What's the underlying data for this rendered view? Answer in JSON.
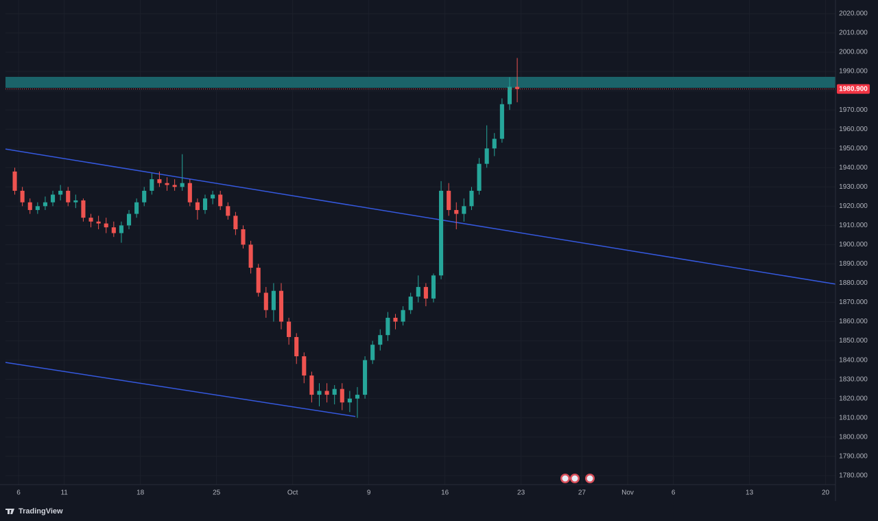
{
  "chart_data": {
    "type": "candlestick",
    "brand": "TradingView",
    "x": [
      -0.25,
      0.25,
      0.75,
      1.25,
      1.75,
      2.25,
      2.75,
      3.25,
      3.75,
      4.25,
      4.75,
      5.25,
      5.75,
      6.25,
      6.75,
      7.25,
      7.75,
      8.25,
      8.75,
      9.25,
      9.75,
      10.25,
      10.75,
      11.25,
      11.75,
      12.25,
      12.75,
      13.25,
      13.75,
      14.25,
      14.75,
      15.25,
      15.75,
      16.25,
      16.75,
      17.25,
      17.75,
      18.25,
      18.75,
      19.25,
      19.75,
      20.25,
      20.75,
      21.25,
      21.75,
      22.25,
      22.75,
      23.25,
      23.75,
      24.25,
      24.75,
      25.25,
      25.75,
      26.25,
      26.75,
      27.25,
      27.75,
      28.25,
      28.75,
      29.25,
      29.75,
      30.25,
      30.75,
      31.25,
      31.75,
      32.25,
      32.75
    ],
    "open": [
      1938,
      1928,
      1922,
      1918,
      1920,
      1922,
      1926,
      1928,
      1922,
      1923,
      1914,
      1912,
      1911,
      1909,
      1906,
      1910,
      1916,
      1922,
      1928,
      1934,
      1932,
      1931,
      1930,
      1932,
      1922,
      1918,
      1924,
      1926,
      1920,
      1915,
      1908,
      1900,
      1888,
      1875,
      1866,
      1876,
      1860,
      1852,
      1842,
      1832,
      1822,
      1824,
      1822,
      1825,
      1818,
      1820,
      1822,
      1840,
      1848,
      1853,
      1862,
      1860,
      1866,
      1873,
      1878,
      1872,
      1884,
      1928,
      1918,
      1916,
      1920,
      1928,
      1942,
      1950,
      1955,
      1973,
      1982
    ],
    "high": [
      1940,
      1930,
      1924,
      1922,
      1925,
      1928,
      1931,
      1930,
      1926,
      1924,
      1916,
      1915,
      1914,
      1912,
      1912,
      1918,
      1924,
      1930,
      1937,
      1938,
      1935,
      1934,
      1947,
      1934,
      1924,
      1926,
      1928,
      1928,
      1922,
      1917,
      1910,
      1902,
      1890,
      1878,
      1880,
      1880,
      1862,
      1854,
      1844,
      1834,
      1828,
      1828,
      1827,
      1828,
      1824,
      1826,
      1842,
      1850,
      1856,
      1865,
      1864,
      1868,
      1875,
      1884,
      1880,
      1885,
      1933,
      1932,
      1922,
      1924,
      1930,
      1945,
      1962,
      1958,
      1976,
      1987,
      1997
    ],
    "low": [
      1926,
      1920,
      1916,
      1916,
      1918,
      1920,
      1923,
      1920,
      1919,
      1912,
      1909,
      1908,
      1906,
      1904,
      1901,
      1908,
      1914,
      1920,
      1926,
      1930,
      1928,
      1928,
      1928,
      1920,
      1913,
      1916,
      1921,
      1918,
      1913,
      1905,
      1898,
      1885,
      1873,
      1862,
      1860,
      1856,
      1848,
      1838,
      1828,
      1818,
      1816,
      1818,
      1817,
      1814,
      1813,
      1810,
      1820,
      1838,
      1845,
      1850,
      1856,
      1858,
      1864,
      1870,
      1868,
      1870,
      1882,
      1915,
      1908,
      1912,
      1918,
      1926,
      1940,
      1946,
      1953,
      1970,
      1974
    ],
    "close": [
      1928,
      1922,
      1918,
      1920,
      1922,
      1926,
      1928,
      1922,
      1923,
      1914,
      1912,
      1911,
      1909,
      1906,
      1910,
      1916,
      1922,
      1928,
      1934,
      1932,
      1931,
      1930,
      1932,
      1922,
      1918,
      1924,
      1926,
      1920,
      1915,
      1908,
      1900,
      1888,
      1875,
      1866,
      1876,
      1860,
      1852,
      1842,
      1832,
      1822,
      1824,
      1822,
      1825,
      1818,
      1820,
      1822,
      1840,
      1848,
      1853,
      1862,
      1860,
      1866,
      1873,
      1878,
      1872,
      1884,
      1928,
      1918,
      1916,
      1920,
      1928,
      1942,
      1950,
      1955,
      1973,
      1982,
      1980.9
    ],
    "up_color": "#26a69a",
    "down_color": "#ef5350",
    "xlim": [
      -0.86,
      53.65
    ],
    "xticks": [
      {
        "value": 0,
        "label": "6"
      },
      {
        "value": 3,
        "label": "11"
      },
      {
        "value": 8,
        "label": "18"
      },
      {
        "value": 13,
        "label": "25"
      },
      {
        "value": 18,
        "label": "Oct"
      },
      {
        "value": 23,
        "label": "9"
      },
      {
        "value": 28,
        "label": "16"
      },
      {
        "value": 33,
        "label": "23"
      },
      {
        "value": 37,
        "label": "27"
      },
      {
        "value": 40,
        "label": "Nov"
      },
      {
        "value": 43,
        "label": "6"
      },
      {
        "value": 48,
        "label": "13"
      },
      {
        "value": 53,
        "label": "20"
      }
    ],
    "ylim": [
      1775.3,
      2020
    ],
    "yticks": [
      {
        "value": 1780,
        "label": "1780.000"
      },
      {
        "value": 1790,
        "label": "1790.000"
      },
      {
        "value": 1800,
        "label": "1800.000"
      },
      {
        "value": 1810,
        "label": "1810.000"
      },
      {
        "value": 1820,
        "label": "1820.000"
      },
      {
        "value": 1830,
        "label": "1830.000"
      },
      {
        "value": 1840,
        "label": "1840.000"
      },
      {
        "value": 1850,
        "label": "1850.000"
      },
      {
        "value": 1860,
        "label": "1860.000"
      },
      {
        "value": 1870,
        "label": "1870.000"
      },
      {
        "value": 1880,
        "label": "1880.000"
      },
      {
        "value": 1890,
        "label": "1890.000"
      },
      {
        "value": 1900,
        "label": "1900.000"
      },
      {
        "value": 1910,
        "label": "1910.000"
      },
      {
        "value": 1920,
        "label": "1920.000"
      },
      {
        "value": 1930,
        "label": "1930.000"
      },
      {
        "value": 1940,
        "label": "1940.000"
      },
      {
        "value": 1950,
        "label": "1950.000"
      },
      {
        "value": 1960,
        "label": "1960.000"
      },
      {
        "value": 1970,
        "label": "1970.000"
      },
      {
        "value": 1980,
        "label": "1980.000"
      },
      {
        "value": 1990,
        "label": "1990.000"
      },
      {
        "value": 2000,
        "label": "2000.000"
      },
      {
        "value": 2010,
        "label": "2010.000"
      },
      {
        "value": 2020,
        "label": "2020.000"
      }
    ],
    "grid": true,
    "last_price": 1980.9,
    "last_price_label": "1980.900",
    "zone": {
      "y": [
        1981.5,
        1987.2
      ],
      "color": "#1b6369"
    },
    "trend_lines": [
      {
        "x": [
          -0.86,
          53.65
        ],
        "y": [
          1949.7,
          1879.5
        ],
        "color": "#3559e0"
      },
      {
        "x": [
          -0.86,
          22.12
        ],
        "y": [
          1838.8,
          1810.7
        ],
        "color": "#3559e0"
      }
    ]
  }
}
